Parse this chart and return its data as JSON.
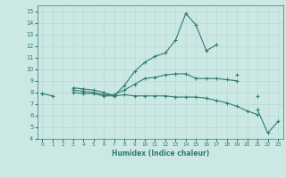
{
  "xlabel": "Humidex (Indice chaleur)",
  "x": [
    0,
    1,
    2,
    3,
    4,
    5,
    6,
    7,
    8,
    9,
    10,
    11,
    12,
    13,
    14,
    15,
    16,
    17,
    18,
    19,
    20,
    21,
    22,
    23
  ],
  "line1": [
    7.9,
    7.7,
    null,
    8.4,
    8.3,
    8.2,
    8.0,
    7.7,
    8.6,
    9.8,
    10.6,
    11.1,
    11.4,
    12.5,
    14.8,
    13.8,
    11.6,
    12.1,
    null,
    9.5,
    null,
    7.7,
    null,
    null
  ],
  "line2": [
    7.9,
    null,
    null,
    8.2,
    8.1,
    8.0,
    7.8,
    7.8,
    8.2,
    8.7,
    9.2,
    9.3,
    9.5,
    9.6,
    9.6,
    9.2,
    9.2,
    9.2,
    9.1,
    9.0,
    null,
    null,
    null,
    null
  ],
  "line3": [
    7.9,
    null,
    null,
    8.0,
    7.9,
    7.9,
    7.7,
    7.7,
    7.8,
    7.7,
    7.7,
    7.7,
    7.7,
    7.6,
    7.6,
    7.6,
    7.5,
    7.3,
    7.1,
    6.8,
    6.4,
    6.1,
    null,
    null
  ],
  "line4": [
    null,
    null,
    null,
    null,
    null,
    null,
    null,
    null,
    null,
    null,
    null,
    null,
    null,
    null,
    null,
    null,
    null,
    null,
    null,
    null,
    null,
    6.5,
    4.5,
    5.5
  ],
  "line_color": "#2e7d6e",
  "bg_color": "#cce8e4",
  "grid_color": "#b8d8d4",
  "ylim": [
    4,
    15.5
  ],
  "xlim": [
    -0.5,
    23.5
  ],
  "yticks": [
    4,
    5,
    6,
    7,
    8,
    9,
    10,
    11,
    12,
    13,
    14,
    15
  ],
  "xticks": [
    0,
    1,
    2,
    3,
    4,
    5,
    6,
    7,
    8,
    9,
    10,
    11,
    12,
    13,
    14,
    15,
    16,
    17,
    18,
    19,
    20,
    21,
    22,
    23
  ],
  "marker": "+"
}
